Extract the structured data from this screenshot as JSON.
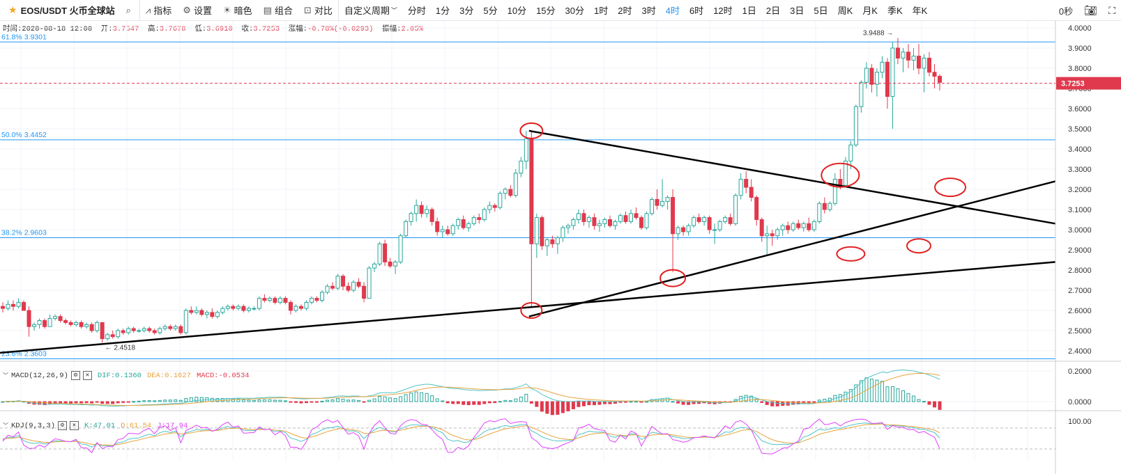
{
  "toolbar": {
    "symbol": "EOS/USDT 火币全球站",
    "indicators": "指标",
    "settings": "设置",
    "theme": "暗色",
    "combo": "组合",
    "compare": "对比",
    "custom_period": "自定义周期",
    "periods": [
      "分时",
      "1分",
      "3分",
      "5分",
      "10分",
      "15分",
      "30分",
      "1时",
      "2时",
      "3时",
      "4时",
      "6时",
      "12时",
      "1日",
      "2日",
      "3日",
      "5日",
      "周K",
      "月K",
      "季K",
      "年K"
    ],
    "active_period": "4时",
    "countdown": "0秒"
  },
  "info": {
    "time_label": "时间:",
    "time": "2020-08-18 12:00",
    "open_label": "开:",
    "open": "3.7547",
    "high_label": "高:",
    "high": "3.7678",
    "low_label": "低:",
    "low": "3.6910",
    "close_label": "收:",
    "close": "3.7253",
    "change_label": "涨幅:",
    "change": "-0.78%(-0.0293)",
    "amp_label": "振幅:",
    "amp": "2.05%"
  },
  "macd": {
    "label": "MACD(12,26,9)",
    "dif": "DIF:0.1360",
    "dea": "DEA:0.1627",
    "macd": "MACD:-0.0534"
  },
  "kdj": {
    "label": "KDJ(9,3,3)",
    "k": "K:47.01",
    "d": "D:61.54",
    "j": "J:17.94"
  },
  "colors": {
    "up": "#26a69a",
    "down": "#e0394d",
    "fib": "#2196f3",
    "dif": "#4fc3c8",
    "dea": "#e8a33d",
    "k": "#4fc3c8",
    "d": "#e8a33d",
    "j": "#e040fb"
  },
  "chart_data": {
    "type": "candlestick",
    "price_axis": {
      "min": 2.4,
      "max": 4.0,
      "ticks": [
        "4.0000",
        "3.9000",
        "3.8000",
        "3.7000",
        "3.6000",
        "3.5000",
        "3.4000",
        "3.3000",
        "3.2000",
        "3.1000",
        "3.0000",
        "2.9000",
        "2.8000",
        "2.7000",
        "2.6000",
        "2.5000",
        "2.4000"
      ]
    },
    "last_price": "3.7253",
    "fib_levels": [
      {
        "label": "61.8% 3.9301",
        "price": 3.9301
      },
      {
        "label": "50.0% 3.4452",
        "price": 3.4452
      },
      {
        "label": "38.2% 2.9603",
        "price": 2.9603
      },
      {
        "label": "23.6% 2.3603",
        "price": 2.3603
      }
    ],
    "max_label": "3.9488",
    "min_label": "2.4518",
    "trend_lines_y": [
      {
        "x1": 0,
        "y1": 2.39,
        "x2": 183,
        "y2": 2.84
      },
      {
        "x1": 24,
        "y1": 2.57,
        "x2": 183,
        "y2": 3.24
      },
      {
        "x1": 24,
        "y1": 3.49,
        "x2": 183,
        "y2": 3.03
      }
    ],
    "candles": [
      {
        "o": 2.62,
        "h": 2.64,
        "l": 2.59,
        "c": 2.61
      },
      {
        "o": 2.61,
        "h": 2.65,
        "l": 2.6,
        "c": 2.63
      },
      {
        "o": 2.63,
        "h": 2.65,
        "l": 2.6,
        "c": 2.62
      },
      {
        "o": 2.62,
        "h": 2.66,
        "l": 2.61,
        "c": 2.64
      },
      {
        "o": 2.64,
        "h": 2.65,
        "l": 2.6,
        "c": 2.6
      },
      {
        "o": 2.6,
        "h": 2.62,
        "l": 2.47,
        "c": 2.52
      },
      {
        "o": 2.52,
        "h": 2.54,
        "l": 2.5,
        "c": 2.53
      },
      {
        "o": 2.53,
        "h": 2.56,
        "l": 2.51,
        "c": 2.55
      },
      {
        "o": 2.55,
        "h": 2.56,
        "l": 2.51,
        "c": 2.52
      },
      {
        "o": 2.52,
        "h": 2.58,
        "l": 2.52,
        "c": 2.56
      },
      {
        "o": 2.56,
        "h": 2.58,
        "l": 2.55,
        "c": 2.57
      },
      {
        "o": 2.57,
        "h": 2.58,
        "l": 2.54,
        "c": 2.55
      },
      {
        "o": 2.55,
        "h": 2.56,
        "l": 2.53,
        "c": 2.54
      },
      {
        "o": 2.54,
        "h": 2.55,
        "l": 2.52,
        "c": 2.53
      },
      {
        "o": 2.53,
        "h": 2.55,
        "l": 2.52,
        "c": 2.54
      },
      {
        "o": 2.54,
        "h": 2.55,
        "l": 2.51,
        "c": 2.52
      },
      {
        "o": 2.52,
        "h": 2.54,
        "l": 2.51,
        "c": 2.53
      },
      {
        "o": 2.53,
        "h": 2.54,
        "l": 2.49,
        "c": 2.5
      },
      {
        "o": 2.5,
        "h": 2.55,
        "l": 2.49,
        "c": 2.54
      },
      {
        "o": 2.54,
        "h": 2.54,
        "l": 2.44,
        "c": 2.46
      },
      {
        "o": 2.46,
        "h": 2.49,
        "l": 2.45,
        "c": 2.48
      },
      {
        "o": 2.48,
        "h": 2.5,
        "l": 2.46,
        "c": 2.47
      },
      {
        "o": 2.47,
        "h": 2.51,
        "l": 2.46,
        "c": 2.5
      },
      {
        "o": 2.5,
        "h": 2.51,
        "l": 2.48,
        "c": 2.49
      },
      {
        "o": 2.49,
        "h": 2.52,
        "l": 2.48,
        "c": 2.51
      },
      {
        "o": 2.51,
        "h": 2.52,
        "l": 2.49,
        "c": 2.5
      },
      {
        "o": 2.5,
        "h": 2.51,
        "l": 2.49,
        "c": 2.5
      },
      {
        "o": 2.5,
        "h": 2.52,
        "l": 2.49,
        "c": 2.51
      },
      {
        "o": 2.51,
        "h": 2.52,
        "l": 2.49,
        "c": 2.5
      },
      {
        "o": 2.5,
        "h": 2.51,
        "l": 2.48,
        "c": 2.49
      },
      {
        "o": 2.49,
        "h": 2.52,
        "l": 2.48,
        "c": 2.51
      },
      {
        "o": 2.51,
        "h": 2.53,
        "l": 2.5,
        "c": 2.52
      },
      {
        "o": 2.52,
        "h": 2.53,
        "l": 2.5,
        "c": 2.51
      },
      {
        "o": 2.51,
        "h": 2.53,
        "l": 2.5,
        "c": 2.52
      },
      {
        "o": 2.52,
        "h": 2.53,
        "l": 2.48,
        "c": 2.49
      },
      {
        "o": 2.49,
        "h": 2.61,
        "l": 2.48,
        "c": 2.6
      },
      {
        "o": 2.6,
        "h": 2.62,
        "l": 2.58,
        "c": 2.59
      },
      {
        "o": 2.59,
        "h": 2.62,
        "l": 2.58,
        "c": 2.6
      },
      {
        "o": 2.6,
        "h": 2.61,
        "l": 2.57,
        "c": 2.58
      },
      {
        "o": 2.58,
        "h": 2.6,
        "l": 2.56,
        "c": 2.59
      },
      {
        "o": 2.59,
        "h": 2.61,
        "l": 2.56,
        "c": 2.57
      },
      {
        "o": 2.57,
        "h": 2.6,
        "l": 2.56,
        "c": 2.59
      },
      {
        "o": 2.59,
        "h": 2.62,
        "l": 2.58,
        "c": 2.61
      },
      {
        "o": 2.61,
        "h": 2.63,
        "l": 2.6,
        "c": 2.62
      },
      {
        "o": 2.62,
        "h": 2.63,
        "l": 2.6,
        "c": 2.61
      },
      {
        "o": 2.61,
        "h": 2.63,
        "l": 2.6,
        "c": 2.62
      },
      {
        "o": 2.62,
        "h": 2.63,
        "l": 2.59,
        "c": 2.6
      },
      {
        "o": 2.6,
        "h": 2.62,
        "l": 2.59,
        "c": 2.61
      },
      {
        "o": 2.61,
        "h": 2.62,
        "l": 2.6,
        "c": 2.61
      },
      {
        "o": 2.61,
        "h": 2.67,
        "l": 2.6,
        "c": 2.66
      },
      {
        "o": 2.66,
        "h": 2.68,
        "l": 2.64,
        "c": 2.65
      },
      {
        "o": 2.65,
        "h": 2.67,
        "l": 2.64,
        "c": 2.66
      },
      {
        "o": 2.66,
        "h": 2.67,
        "l": 2.63,
        "c": 2.64
      },
      {
        "o": 2.64,
        "h": 2.67,
        "l": 2.63,
        "c": 2.66
      },
      {
        "o": 2.66,
        "h": 2.67,
        "l": 2.63,
        "c": 2.64
      },
      {
        "o": 2.64,
        "h": 2.65,
        "l": 2.58,
        "c": 2.6
      },
      {
        "o": 2.6,
        "h": 2.63,
        "l": 2.59,
        "c": 2.62
      },
      {
        "o": 2.62,
        "h": 2.63,
        "l": 2.6,
        "c": 2.61
      },
      {
        "o": 2.61,
        "h": 2.65,
        "l": 2.6,
        "c": 2.64
      },
      {
        "o": 2.64,
        "h": 2.67,
        "l": 2.63,
        "c": 2.66
      },
      {
        "o": 2.66,
        "h": 2.67,
        "l": 2.64,
        "c": 2.65
      },
      {
        "o": 2.65,
        "h": 2.7,
        "l": 2.64,
        "c": 2.69
      },
      {
        "o": 2.69,
        "h": 2.73,
        "l": 2.68,
        "c": 2.72
      },
      {
        "o": 2.72,
        "h": 2.74,
        "l": 2.7,
        "c": 2.71
      },
      {
        "o": 2.71,
        "h": 2.78,
        "l": 2.7,
        "c": 2.77
      },
      {
        "o": 2.77,
        "h": 2.78,
        "l": 2.7,
        "c": 2.72
      },
      {
        "o": 2.72,
        "h": 2.74,
        "l": 2.69,
        "c": 2.7
      },
      {
        "o": 2.7,
        "h": 2.75,
        "l": 2.69,
        "c": 2.74
      },
      {
        "o": 2.74,
        "h": 2.76,
        "l": 2.71,
        "c": 2.72
      },
      {
        "o": 2.72,
        "h": 2.74,
        "l": 2.64,
        "c": 2.66
      },
      {
        "o": 2.66,
        "h": 2.82,
        "l": 2.66,
        "c": 2.81
      },
      {
        "o": 2.81,
        "h": 2.84,
        "l": 2.79,
        "c": 2.83
      },
      {
        "o": 2.83,
        "h": 2.94,
        "l": 2.82,
        "c": 2.93
      },
      {
        "o": 2.93,
        "h": 2.95,
        "l": 2.82,
        "c": 2.84
      },
      {
        "o": 2.84,
        "h": 2.86,
        "l": 2.81,
        "c": 2.82
      },
      {
        "o": 2.82,
        "h": 2.85,
        "l": 2.78,
        "c": 2.84
      },
      {
        "o": 2.84,
        "h": 2.98,
        "l": 2.83,
        "c": 2.97
      },
      {
        "o": 2.97,
        "h": 3.05,
        "l": 2.96,
        "c": 3.04
      },
      {
        "o": 3.04,
        "h": 3.09,
        "l": 3.02,
        "c": 3.08
      },
      {
        "o": 3.08,
        "h": 3.15,
        "l": 3.04,
        "c": 3.12
      },
      {
        "o": 3.12,
        "h": 3.14,
        "l": 3.06,
        "c": 3.08
      },
      {
        "o": 3.08,
        "h": 3.12,
        "l": 3.06,
        "c": 3.1
      },
      {
        "o": 3.1,
        "h": 3.11,
        "l": 3.02,
        "c": 3.04
      },
      {
        "o": 3.04,
        "h": 3.06,
        "l": 2.97,
        "c": 2.99
      },
      {
        "o": 2.99,
        "h": 3.02,
        "l": 2.96,
        "c": 3.0
      },
      {
        "o": 3.0,
        "h": 3.02,
        "l": 2.97,
        "c": 2.98
      },
      {
        "o": 2.98,
        "h": 3.03,
        "l": 2.97,
        "c": 3.02
      },
      {
        "o": 3.02,
        "h": 3.06,
        "l": 3.0,
        "c": 3.05
      },
      {
        "o": 3.05,
        "h": 3.07,
        "l": 3.0,
        "c": 3.01
      },
      {
        "o": 3.01,
        "h": 3.04,
        "l": 2.99,
        "c": 3.03
      },
      {
        "o": 3.03,
        "h": 3.07,
        "l": 3.02,
        "c": 3.06
      },
      {
        "o": 3.06,
        "h": 3.08,
        "l": 3.03,
        "c": 3.05
      },
      {
        "o": 3.05,
        "h": 3.11,
        "l": 3.04,
        "c": 3.1
      },
      {
        "o": 3.1,
        "h": 3.14,
        "l": 3.08,
        "c": 3.12
      },
      {
        "o": 3.12,
        "h": 3.13,
        "l": 3.09,
        "c": 3.11
      },
      {
        "o": 3.11,
        "h": 3.19,
        "l": 3.1,
        "c": 3.18
      },
      {
        "o": 3.18,
        "h": 3.21,
        "l": 3.15,
        "c": 3.2
      },
      {
        "o": 3.2,
        "h": 3.22,
        "l": 3.16,
        "c": 3.17
      },
      {
        "o": 3.17,
        "h": 3.3,
        "l": 3.16,
        "c": 3.28
      },
      {
        "o": 3.28,
        "h": 3.36,
        "l": 3.26,
        "c": 3.34
      },
      {
        "o": 3.34,
        "h": 3.49,
        "l": 3.3,
        "c": 3.45
      },
      {
        "o": 3.45,
        "h": 3.49,
        "l": 2.62,
        "c": 2.93
      },
      {
        "o": 2.93,
        "h": 3.08,
        "l": 2.86,
        "c": 3.06
      },
      {
        "o": 3.06,
        "h": 3.07,
        "l": 2.9,
        "c": 2.92
      },
      {
        "o": 2.92,
        "h": 2.96,
        "l": 2.87,
        "c": 2.95
      },
      {
        "o": 2.95,
        "h": 2.97,
        "l": 2.91,
        "c": 2.93
      },
      {
        "o": 2.93,
        "h": 2.97,
        "l": 2.88,
        "c": 2.96
      },
      {
        "o": 2.96,
        "h": 3.02,
        "l": 2.94,
        "c": 3.01
      },
      {
        "o": 3.01,
        "h": 3.03,
        "l": 2.98,
        "c": 3.02
      },
      {
        "o": 3.02,
        "h": 3.06,
        "l": 3.0,
        "c": 3.05
      },
      {
        "o": 3.05,
        "h": 3.1,
        "l": 3.03,
        "c": 3.08
      },
      {
        "o": 3.08,
        "h": 3.1,
        "l": 3.02,
        "c": 3.04
      },
      {
        "o": 3.04,
        "h": 3.07,
        "l": 3.01,
        "c": 3.06
      },
      {
        "o": 3.06,
        "h": 3.08,
        "l": 3.0,
        "c": 3.02
      },
      {
        "o": 3.02,
        "h": 3.05,
        "l": 2.99,
        "c": 3.03
      },
      {
        "o": 3.03,
        "h": 3.06,
        "l": 3.01,
        "c": 3.05
      },
      {
        "o": 3.05,
        "h": 3.07,
        "l": 3.01,
        "c": 3.02
      },
      {
        "o": 3.02,
        "h": 3.05,
        "l": 3.0,
        "c": 3.04
      },
      {
        "o": 3.04,
        "h": 3.08,
        "l": 3.03,
        "c": 3.07
      },
      {
        "o": 3.07,
        "h": 3.09,
        "l": 3.03,
        "c": 3.04
      },
      {
        "o": 3.04,
        "h": 3.1,
        "l": 3.03,
        "c": 3.08
      },
      {
        "o": 3.08,
        "h": 3.11,
        "l": 3.05,
        "c": 3.06
      },
      {
        "o": 3.06,
        "h": 3.07,
        "l": 3.0,
        "c": 3.01
      },
      {
        "o": 3.01,
        "h": 3.09,
        "l": 3.0,
        "c": 3.08
      },
      {
        "o": 3.08,
        "h": 3.16,
        "l": 3.07,
        "c": 3.15
      },
      {
        "o": 3.15,
        "h": 3.2,
        "l": 3.1,
        "c": 3.12
      },
      {
        "o": 3.12,
        "h": 3.25,
        "l": 3.11,
        "c": 3.14
      },
      {
        "o": 3.14,
        "h": 3.17,
        "l": 3.1,
        "c": 3.16
      },
      {
        "o": 3.16,
        "h": 3.2,
        "l": 2.79,
        "c": 2.98
      },
      {
        "o": 2.98,
        "h": 3.02,
        "l": 2.95,
        "c": 3.01
      },
      {
        "o": 3.01,
        "h": 3.02,
        "l": 2.97,
        "c": 2.99
      },
      {
        "o": 2.99,
        "h": 3.03,
        "l": 2.97,
        "c": 3.02
      },
      {
        "o": 3.02,
        "h": 3.07,
        "l": 3.01,
        "c": 3.06
      },
      {
        "o": 3.06,
        "h": 3.08,
        "l": 3.03,
        "c": 3.04
      },
      {
        "o": 3.04,
        "h": 3.07,
        "l": 3.02,
        "c": 3.06
      },
      {
        "o": 3.06,
        "h": 3.07,
        "l": 2.98,
        "c": 3.0
      },
      {
        "o": 3.0,
        "h": 3.03,
        "l": 2.93,
        "c": 3.0
      },
      {
        "o": 3.0,
        "h": 3.05,
        "l": 2.99,
        "c": 3.04
      },
      {
        "o": 3.04,
        "h": 3.07,
        "l": 3.03,
        "c": 3.06
      },
      {
        "o": 3.06,
        "h": 3.08,
        "l": 3.02,
        "c": 3.03
      },
      {
        "o": 3.03,
        "h": 3.18,
        "l": 3.02,
        "c": 3.17
      },
      {
        "o": 3.17,
        "h": 3.28,
        "l": 3.15,
        "c": 3.25
      },
      {
        "o": 3.25,
        "h": 3.29,
        "l": 3.18,
        "c": 3.21
      },
      {
        "o": 3.21,
        "h": 3.25,
        "l": 3.14,
        "c": 3.16
      },
      {
        "o": 3.16,
        "h": 3.17,
        "l": 3.02,
        "c": 3.05
      },
      {
        "o": 3.05,
        "h": 3.06,
        "l": 2.94,
        "c": 2.97
      },
      {
        "o": 2.97,
        "h": 3.02,
        "l": 2.87,
        "c": 2.98
      },
      {
        "o": 2.98,
        "h": 3.0,
        "l": 2.92,
        "c": 2.97
      },
      {
        "o": 2.97,
        "h": 3.01,
        "l": 2.95,
        "c": 3.0
      },
      {
        "o": 3.0,
        "h": 3.03,
        "l": 2.97,
        "c": 3.02
      },
      {
        "o": 3.02,
        "h": 3.04,
        "l": 2.98,
        "c": 3.0
      },
      {
        "o": 3.0,
        "h": 3.04,
        "l": 2.99,
        "c": 3.03
      },
      {
        "o": 3.03,
        "h": 3.05,
        "l": 3.0,
        "c": 3.01
      },
      {
        "o": 3.01,
        "h": 3.04,
        "l": 2.99,
        "c": 3.03
      },
      {
        "o": 3.03,
        "h": 3.06,
        "l": 2.99,
        "c": 3.0
      },
      {
        "o": 3.0,
        "h": 3.05,
        "l": 2.99,
        "c": 3.04
      },
      {
        "o": 3.04,
        "h": 3.14,
        "l": 3.03,
        "c": 3.13
      },
      {
        "o": 3.13,
        "h": 3.16,
        "l": 3.08,
        "c": 3.1
      },
      {
        "o": 3.1,
        "h": 3.14,
        "l": 3.09,
        "c": 3.13
      },
      {
        "o": 3.13,
        "h": 3.28,
        "l": 3.12,
        "c": 3.25
      },
      {
        "o": 3.25,
        "h": 3.3,
        "l": 3.2,
        "c": 3.22
      },
      {
        "o": 3.22,
        "h": 3.36,
        "l": 3.21,
        "c": 3.34
      },
      {
        "o": 3.34,
        "h": 3.44,
        "l": 3.3,
        "c": 3.42
      },
      {
        "o": 3.42,
        "h": 3.62,
        "l": 3.41,
        "c": 3.61
      },
      {
        "o": 3.61,
        "h": 3.74,
        "l": 3.58,
        "c": 3.73
      },
      {
        "o": 3.73,
        "h": 3.83,
        "l": 3.7,
        "c": 3.8
      },
      {
        "o": 3.8,
        "h": 3.82,
        "l": 3.68,
        "c": 3.72
      },
      {
        "o": 3.72,
        "h": 3.8,
        "l": 3.66,
        "c": 3.78
      },
      {
        "o": 3.78,
        "h": 3.86,
        "l": 3.75,
        "c": 3.83
      },
      {
        "o": 3.83,
        "h": 3.85,
        "l": 3.6,
        "c": 3.66
      },
      {
        "o": 3.66,
        "h": 3.93,
        "l": 3.5,
        "c": 3.9
      },
      {
        "o": 3.9,
        "h": 3.95,
        "l": 3.82,
        "c": 3.85
      },
      {
        "o": 3.85,
        "h": 3.9,
        "l": 3.78,
        "c": 3.88
      },
      {
        "o": 3.88,
        "h": 3.92,
        "l": 3.8,
        "c": 3.84
      },
      {
        "o": 3.84,
        "h": 3.9,
        "l": 3.79,
        "c": 3.86
      },
      {
        "o": 3.86,
        "h": 3.92,
        "l": 3.77,
        "c": 3.8
      },
      {
        "o": 3.8,
        "h": 3.87,
        "l": 3.68,
        "c": 3.85
      },
      {
        "o": 3.85,
        "h": 3.88,
        "l": 3.76,
        "c": 3.78
      },
      {
        "o": 3.78,
        "h": 3.82,
        "l": 3.7,
        "c": 3.76
      },
      {
        "o": 3.76,
        "h": 3.77,
        "l": 3.69,
        "c": 3.73
      }
    ],
    "macd_axis": {
      "ticks": [
        "0.2000",
        "0.0000"
      ],
      "min": -0.05,
      "max": 0.25
    },
    "kdj_axis": {
      "ticks": [
        "100.00"
      ],
      "min": -10,
      "max": 120
    }
  }
}
